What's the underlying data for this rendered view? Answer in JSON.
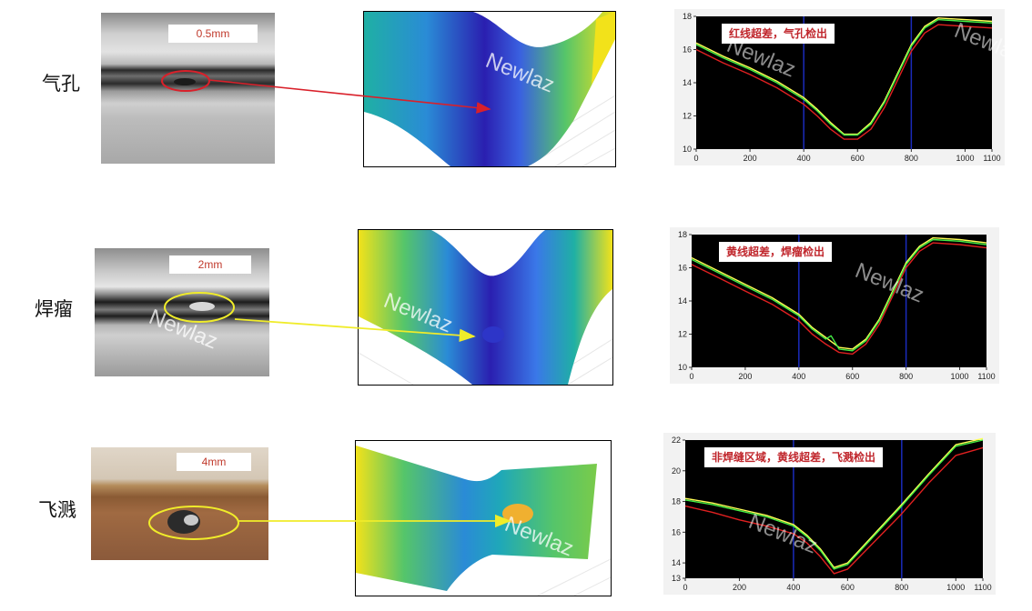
{
  "watermark": "Newlaz",
  "rows": [
    {
      "defect": "气孔",
      "scale_label": "0.5mm",
      "marker_color": "#d9202a",
      "chart_data": {
        "type": "line",
        "annotation": "红线超差，气孔检出",
        "xlim": [
          0,
          1100
        ],
        "ylim": [
          10,
          18
        ],
        "xticks": [
          "0",
          "200",
          "400",
          "600",
          "800",
          "1000",
          "1100"
        ],
        "yticks": [
          "10",
          "12",
          "14",
          "16",
          "18"
        ],
        "vlines": [
          400,
          800
        ],
        "series": [
          {
            "color": "#ffff55",
            "x": [
              0,
              100,
              200,
              300,
              400,
              450,
              500,
              550,
              600,
              650,
              700,
              750,
              800,
              850,
              900,
              1000,
              1100
            ],
            "y": [
              16.4,
              15.6,
              14.9,
              14.1,
              13.1,
              12.4,
              11.6,
              10.9,
              10.9,
              11.6,
              12.9,
              14.6,
              16.3,
              17.4,
              17.9,
              17.8,
              17.7
            ]
          },
          {
            "color": "#44ee44",
            "x": [
              0,
              100,
              200,
              300,
              400,
              450,
              500,
              550,
              600,
              650,
              700,
              750,
              800,
              850,
              900,
              1000,
              1100
            ],
            "y": [
              16.3,
              15.5,
              14.8,
              14.0,
              13.0,
              12.3,
              11.5,
              10.85,
              10.85,
              11.5,
              12.8,
              14.5,
              16.2,
              17.3,
              17.8,
              17.7,
              17.6
            ]
          },
          {
            "color": "#e02020",
            "x": [
              0,
              100,
              200,
              300,
              400,
              450,
              500,
              550,
              600,
              650,
              700,
              750,
              800,
              850,
              900,
              1000,
              1100
            ],
            "y": [
              16.0,
              15.2,
              14.5,
              13.7,
              12.7,
              12.0,
              11.2,
              10.6,
              10.6,
              11.2,
              12.5,
              14.2,
              15.9,
              17.0,
              17.5,
              17.4,
              17.3
            ]
          }
        ]
      }
    },
    {
      "defect": "焊瘤",
      "scale_label": "2mm",
      "marker_color": "#f0ec2a",
      "chart_data": {
        "type": "line",
        "annotation": "黄线超差，焊瘤检出",
        "xlim": [
          0,
          1100
        ],
        "ylim": [
          10,
          18
        ],
        "xticks": [
          "0",
          "200",
          "400",
          "600",
          "800",
          "1000",
          "1100"
        ],
        "yticks": [
          "10",
          "12",
          "14",
          "16",
          "18"
        ],
        "vlines": [
          400,
          800
        ],
        "series": [
          {
            "color": "#ffff55",
            "x": [
              0,
              100,
              200,
              300,
              400,
              450,
              500,
              550,
              600,
              650,
              700,
              750,
              800,
              850,
              900,
              1000,
              1100
            ],
            "y": [
              16.6,
              15.8,
              15.0,
              14.2,
              13.2,
              12.4,
              11.8,
              11.2,
              11.1,
              11.7,
              12.9,
              14.6,
              16.3,
              17.3,
              17.8,
              17.7,
              17.5
            ]
          },
          {
            "color": "#44ee44",
            "x": [
              0,
              100,
              200,
              300,
              400,
              450,
              500,
              520,
              550,
              600,
              650,
              700,
              750,
              800,
              850,
              900,
              1000,
              1100
            ],
            "y": [
              16.5,
              15.7,
              14.9,
              14.1,
              13.1,
              12.3,
              11.7,
              11.9,
              11.1,
              11.0,
              11.6,
              12.8,
              14.5,
              16.2,
              17.2,
              17.7,
              17.6,
              17.4
            ]
          },
          {
            "color": "#e02020",
            "x": [
              0,
              100,
              200,
              300,
              400,
              450,
              500,
              550,
              600,
              650,
              700,
              750,
              800,
              850,
              900,
              1000,
              1100
            ],
            "y": [
              16.2,
              15.4,
              14.6,
              13.8,
              12.8,
              12.0,
              11.4,
              10.9,
              10.8,
              11.4,
              12.6,
              14.3,
              16.0,
              17.0,
              17.5,
              17.4,
              17.2
            ]
          }
        ]
      }
    },
    {
      "defect": "飞溅",
      "scale_label": "4mm",
      "marker_color": "#f0ec2a",
      "chart_data": {
        "type": "line",
        "annotation": "非焊缝区域，黄线超差，飞溅检出",
        "xlim": [
          0,
          1100
        ],
        "ylim": [
          13,
          22
        ],
        "xticks": [
          "0",
          "200",
          "400",
          "600",
          "800",
          "1000",
          "1100"
        ],
        "yticks": [
          "13",
          "14",
          "16",
          "18",
          "20",
          "22"
        ],
        "vlines": [
          400,
          800
        ],
        "series": [
          {
            "color": "#ffff55",
            "x": [
              0,
              100,
              200,
              300,
              400,
              450,
              500,
              550,
              600,
              700,
              800,
              900,
              1000,
              1100
            ],
            "y": [
              18.2,
              17.9,
              17.5,
              17.1,
              16.5,
              15.8,
              14.9,
              13.7,
              14.0,
              15.9,
              17.8,
              19.8,
              21.7,
              22.1
            ]
          },
          {
            "color": "#44ee44",
            "x": [
              0,
              100,
              200,
              300,
              400,
              450,
              500,
              550,
              600,
              700,
              800,
              900,
              1000,
              1100
            ],
            "y": [
              18.1,
              17.8,
              17.4,
              17.0,
              16.4,
              15.7,
              14.8,
              13.6,
              13.9,
              15.8,
              17.7,
              19.7,
              21.6,
              22.0
            ]
          },
          {
            "color": "#e02020",
            "x": [
              0,
              100,
              200,
              300,
              400,
              450,
              500,
              550,
              600,
              700,
              800,
              900,
              1000,
              1100
            ],
            "y": [
              17.7,
              17.3,
              16.8,
              16.4,
              15.9,
              15.3,
              14.4,
              13.3,
              13.6,
              15.4,
              17.2,
              19.2,
              21.0,
              21.5
            ]
          }
        ]
      }
    }
  ]
}
